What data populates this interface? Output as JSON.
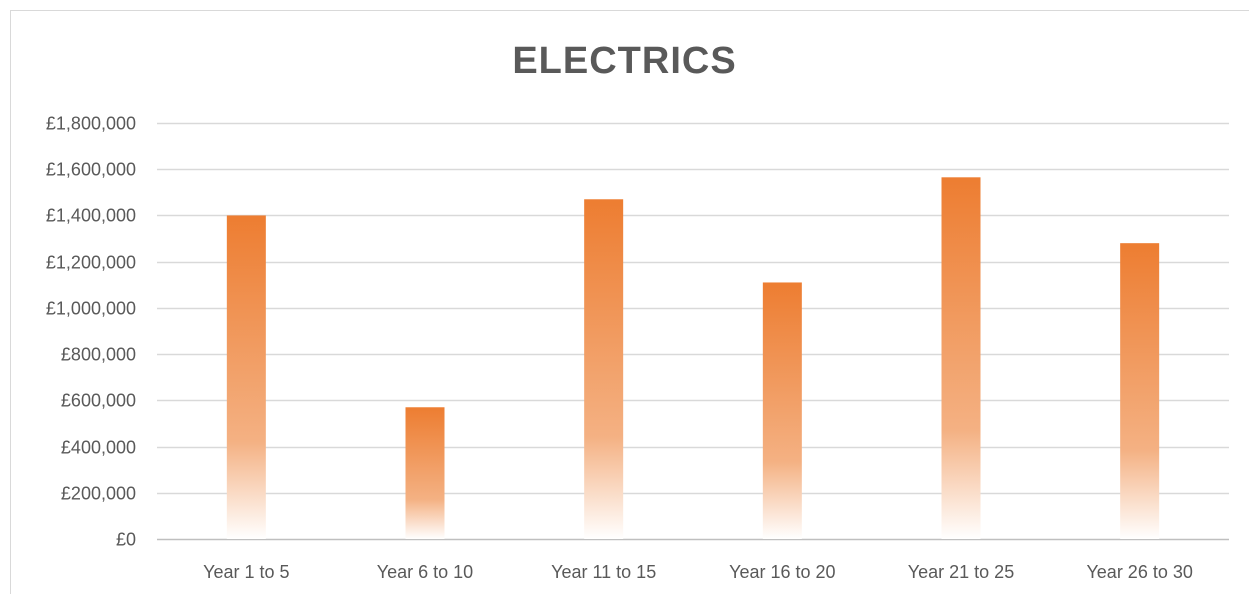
{
  "chart_data": {
    "type": "bar",
    "title": "ELECTRICS",
    "xlabel": "",
    "ylabel": "",
    "categories": [
      "Year 1 to 5",
      "Year 6 to 10",
      "Year 11 to 15",
      "Year 16 to 20",
      "Year 21 to 25",
      "Year 26 to 30"
    ],
    "values": [
      1400000,
      570000,
      1470000,
      1110000,
      1565000,
      1280000
    ],
    "ylim": [
      0,
      1800000
    ],
    "y_ticks": [
      0,
      200000,
      400000,
      600000,
      800000,
      1000000,
      1200000,
      1400000,
      1600000,
      1800000
    ],
    "y_tick_labels": [
      "£0",
      "£200,000",
      "£400,000",
      "£600,000",
      "£800,000",
      "£1,000,000",
      "£1,200,000",
      "£1,400,000",
      "£1,600,000",
      "£1,800,000"
    ],
    "grid": true,
    "legend": "none",
    "bar_color": "#ED7D31"
  }
}
